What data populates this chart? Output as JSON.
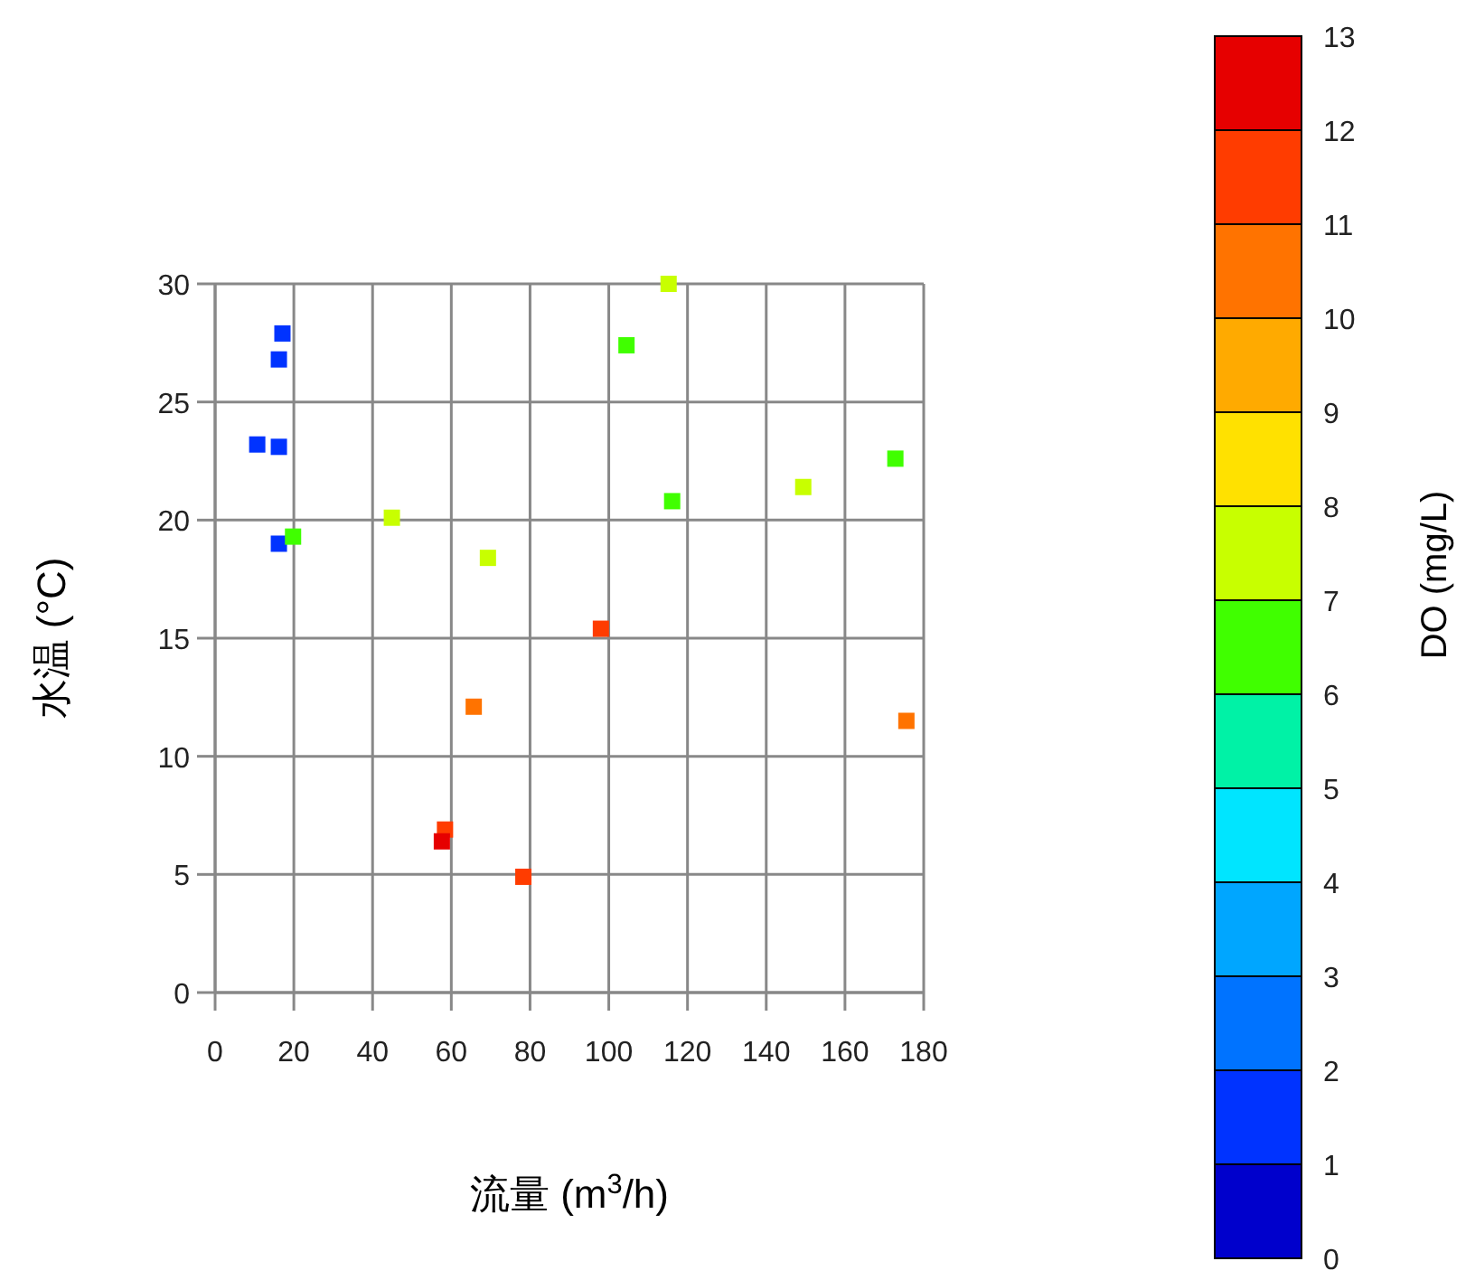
{
  "chart_data": {
    "type": "scatter",
    "xlabel": "流量 (m$^{3}$/h)",
    "ylabel": "水温 (°C)",
    "clabel": "DO (mg/L)",
    "x": [
      17.1,
      16.2,
      10.7,
      16.2,
      16.2,
      19.8,
      44.9,
      69.3,
      115.2,
      104.5,
      116.1,
      149.4,
      172.8,
      98.0,
      65.7,
      175.6,
      58.4,
      57.6,
      78.3
    ],
    "values": [
      27.9,
      26.8,
      23.2,
      23.1,
      19.0,
      19.3,
      20.1,
      18.4,
      30.0,
      27.4,
      20.8,
      21.4,
      22.6,
      15.4,
      12.1,
      11.5,
      6.9,
      6.4,
      4.9
    ],
    "cvalues": [
      1.5,
      1.5,
      1.5,
      1.5,
      1.5,
      6.5,
      7.5,
      7.5,
      7.5,
      6.5,
      6.5,
      7.5,
      6.5,
      11.5,
      10.5,
      10.5,
      11.5,
      12.5,
      11.5
    ],
    "xlim": [
      0,
      180
    ],
    "xticks": [
      0,
      20,
      40,
      60,
      80,
      100,
      120,
      140,
      160,
      180
    ],
    "ylim": [
      0,
      30
    ],
    "yticks": [
      0,
      5,
      10,
      15,
      20,
      25,
      30
    ],
    "clim": [
      0,
      13
    ],
    "cticks": [
      0,
      1,
      2,
      3,
      4,
      5,
      6,
      7,
      8,
      9,
      10,
      11,
      12,
      13
    ],
    "grid": true,
    "marker": "square"
  }
}
